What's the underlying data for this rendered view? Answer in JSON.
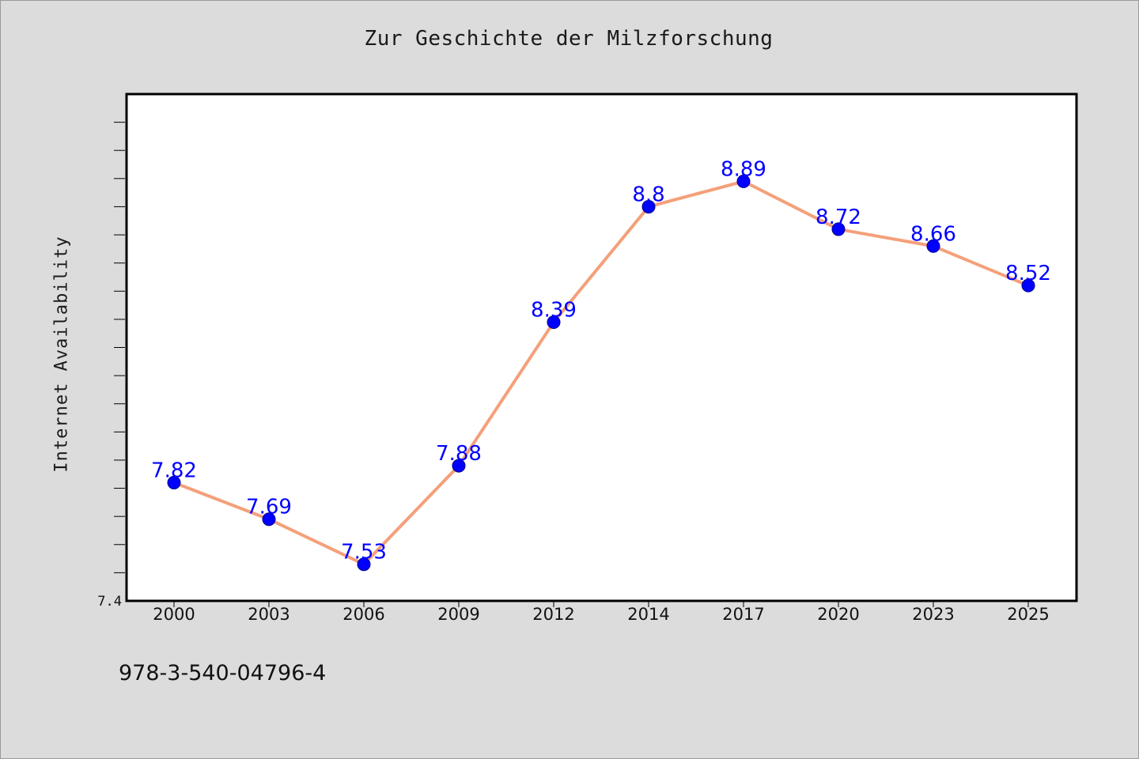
{
  "chart_data": {
    "type": "line",
    "title": "Zur Geschichte der Milzforschung",
    "ylabel": "Internet Availability",
    "xlabel": "",
    "categories": [
      "2000",
      "2003",
      "2006",
      "2009",
      "2012",
      "2014",
      "2017",
      "2020",
      "2023",
      "2025"
    ],
    "series": [
      {
        "values": [
          7.82,
          7.69,
          7.53,
          7.88,
          8.39,
          8.8,
          8.89,
          8.72,
          8.66,
          8.52
        ],
        "line_color": "#f4a07a",
        "marker_color": "#0000ff"
      }
    ],
    "data_labels": [
      "7.82",
      "7.69",
      "7.53",
      "7.88",
      "8.39",
      "8.8",
      "8.89",
      "8.72",
      "8.66",
      "8.52"
    ],
    "ylim": [
      7.4,
      9.2
    ],
    "y_tick_labels": [
      "7.4"
    ],
    "grid": false,
    "legend": "none"
  },
  "footnote": "978-3-540-04796-4"
}
